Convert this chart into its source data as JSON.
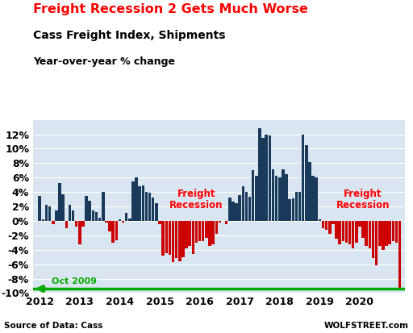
{
  "title1": "Freight Recession 2 Gets Much Worse",
  "title2": "Cass Freight Index, Shipments",
  "title3": "Year-over-year % change",
  "source": "Source of Data: Cass",
  "watermark": "WOLFSTREET.com",
  "annotation_oct2009": "Oct 2009",
  "annotation_freight_recession1": "Freight\nRecession",
  "annotation_freight_recession2": "Freight\nRecession",
  "ylim": [
    -10,
    14
  ],
  "yticks": [
    -10,
    -8,
    -6,
    -4,
    -2,
    0,
    2,
    4,
    6,
    8,
    10,
    12
  ],
  "background_color": "#d9e5f0",
  "bar_color_positive": "#1a3a5c",
  "bar_color_negative": "#cc0000",
  "reference_line_color": "#00aa00",
  "reference_line_y": -9.4,
  "values": [
    3.5,
    0.2,
    2.2,
    2.0,
    -0.5,
    1.5,
    5.2,
    3.7,
    -1.0,
    2.2,
    1.5,
    -0.8,
    -3.2,
    -0.8,
    3.5,
    2.8,
    1.4,
    1.2,
    0.4,
    4.0,
    -0.2,
    -1.5,
    -3.0,
    -2.7,
    0.2,
    -0.2,
    1.1,
    0.3,
    5.5,
    6.0,
    4.8,
    4.9,
    4.0,
    3.9,
    3.2,
    2.5,
    -0.5,
    -4.8,
    -4.5,
    -4.7,
    -5.7,
    -5.2,
    -5.6,
    -5.0,
    -3.8,
    -3.5,
    -4.6,
    -3.0,
    -2.8,
    -2.8,
    -2.3,
    -3.5,
    -3.3,
    -1.8,
    -0.2,
    0.0,
    -0.4,
    3.2,
    2.7,
    2.5,
    3.6,
    4.8,
    4.0,
    3.3,
    7.0,
    6.2,
    12.8,
    11.5,
    12.0,
    11.8,
    7.1,
    6.3,
    6.0,
    7.2,
    6.5,
    3.0,
    3.1,
    4.0,
    4.0,
    12.0,
    10.5,
    8.1,
    6.2,
    6.0,
    0.2,
    -1.0,
    -1.2,
    -1.8,
    -0.5,
    -2.5,
    -3.2,
    -2.8,
    -3.0,
    -3.2,
    -3.8,
    -3.0,
    -0.8,
    -2.4,
    -3.5,
    -3.8,
    -5.2,
    -6.2,
    -3.5,
    -4.0,
    -3.5,
    -3.2,
    -2.8,
    -3.0,
    -9.4
  ]
}
